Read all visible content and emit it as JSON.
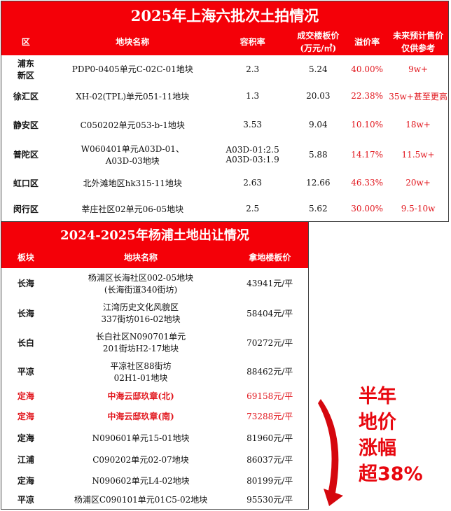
{
  "table1": {
    "title": "2025年上海六批次土拍情况",
    "headers": [
      "区",
      "地块名称",
      "容积率",
      "成交楼板价\n(万元/㎡)",
      "溢价率",
      "未来预计售价\n仅供参考"
    ],
    "rows": [
      [
        "浦东\n新区",
        "PDP0-0405单元C-02C-01地块",
        "2.3",
        "5.24",
        "40.00%",
        "9w+"
      ],
      [
        "徐汇区",
        "XH-02(TPL)单元051-11地块",
        "1.3",
        "20.03",
        "22.38%",
        "35w+甚至更高"
      ],
      [
        "静安区",
        "C050202单元053-b-1地块",
        "3.53",
        "9.04",
        "10.10%",
        "18w+"
      ],
      [
        "普陀区",
        "W060401单元A03D-01、\nA03D-03地块",
        "A03D-01:2.5\nA03D-03:1.9",
        "5.88",
        "14.17%",
        "11.5w+"
      ],
      [
        "虹口区",
        "北外滩地区hk315-11地块",
        "2.63",
        "12.66",
        "46.33%",
        "20w+"
      ],
      [
        "闵行区",
        "莘庄社区02单元06-05地块",
        "2.5",
        "5.62",
        "30.00%",
        "9.5-10w"
      ]
    ]
  },
  "table2": {
    "title": "2024-2025年杨浦土地出让情况",
    "headers": [
      "板块",
      "地块名称",
      "拿地楼板价"
    ],
    "rows": [
      {
        "cells": [
          "长海",
          "杨浦区长海社区002-05地块\n(长海街道340街坊)",
          "43941元/平"
        ],
        "highlight": false
      },
      {
        "cells": [
          "长海",
          "江湾历史文化风貌区\n337街坊016-02地块",
          "58404元/平"
        ],
        "highlight": false
      },
      {
        "cells": [
          "长白",
          "长白社区N090701单元\n201街坊H2-17地块",
          "70272元/平"
        ],
        "highlight": false
      },
      {
        "cells": [
          "平凉",
          "平凉社区88街坊\n02H1-01地块",
          "88462元/平"
        ],
        "highlight": false
      },
      {
        "cells": [
          "定海",
          "中海云邸玖章(北)",
          "69158元/平"
        ],
        "highlight": true
      },
      {
        "cells": [
          "定海",
          "中海云邸玖章(南)",
          "73288元/平"
        ],
        "highlight": true
      },
      {
        "cells": [
          "定海",
          "N090601单元15-01地块",
          "81960元/平"
        ],
        "highlight": false
      },
      {
        "cells": [
          "江浦",
          "C090202单元02-07地块",
          "86037元/平"
        ],
        "highlight": false
      },
      {
        "cells": [
          "定海",
          "N090602单元L4-02地块",
          "80199元/平"
        ],
        "highlight": false
      },
      {
        "cells": [
          "平凉",
          "杨浦区C090101单元01C5-02地块",
          "95530元/平"
        ],
        "highlight": false
      }
    ]
  },
  "annotation": {
    "lines": [
      "半年",
      "地价",
      "涨幅",
      "超38%"
    ],
    "color": "#e8070f",
    "icon": "curved-arrow-down-icon"
  }
}
